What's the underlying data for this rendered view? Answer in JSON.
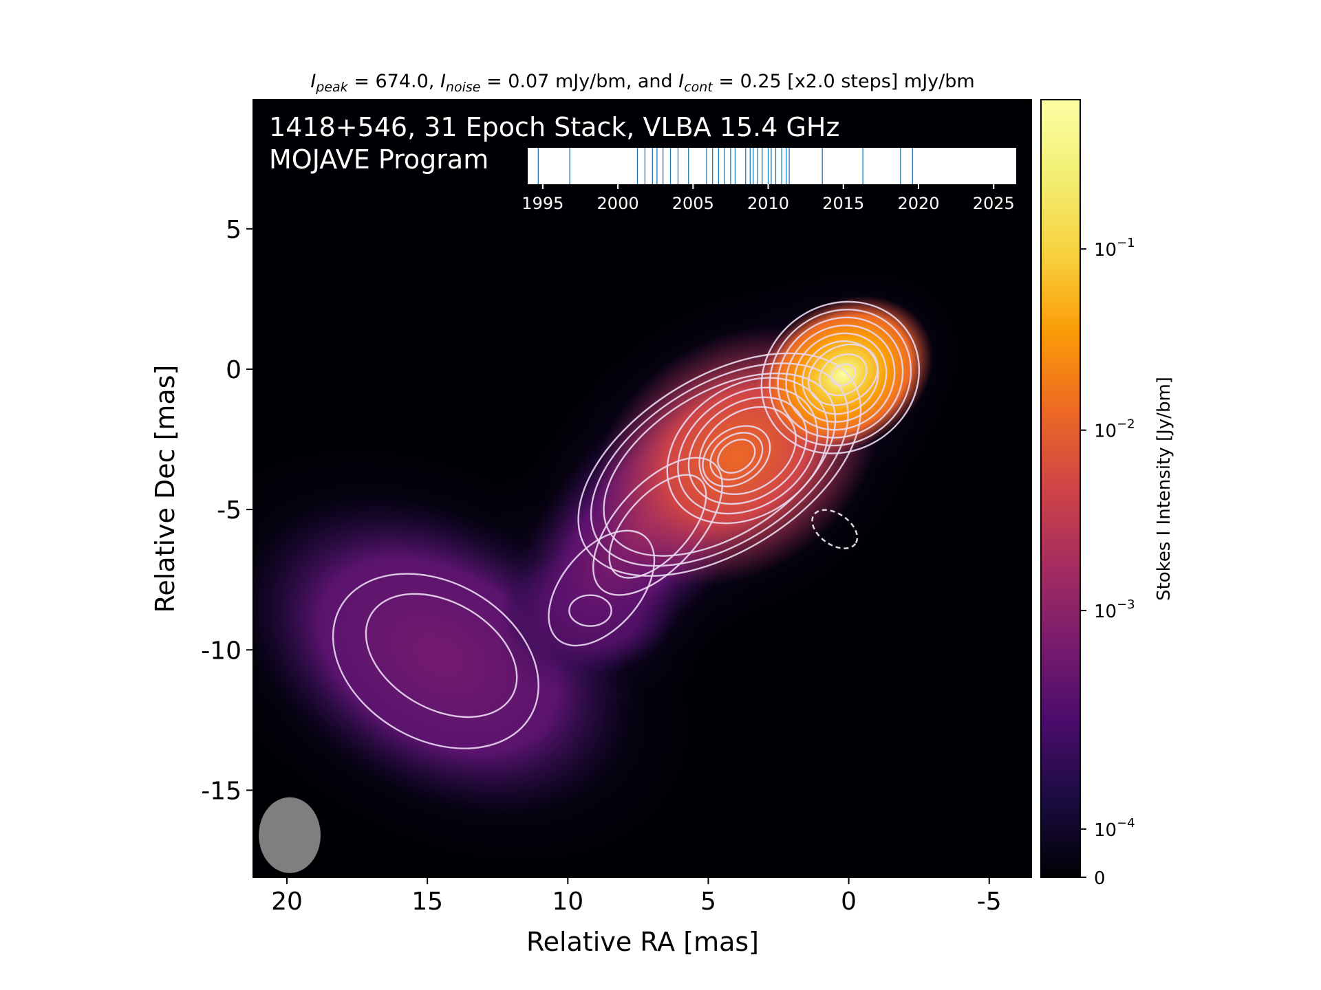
{
  "chart_data": {
    "type": "heatmap",
    "title": "1418+546, 31 Epoch Stack, VLBA 15.4 GHz",
    "program": "MOJAVE Program",
    "subtitle": {
      "peak_var": "I",
      "peak_sub": "peak",
      "peak_value": " = 674.0, ",
      "noise_var": "I",
      "noise_sub": "noise",
      "noise_value": " = 0.07 mJy/bm, and ",
      "cont_var": "I",
      "cont_sub": "cont",
      "cont_value": " = 0.25 [x2.0 steps] mJy/bm"
    },
    "xlabel": "Relative RA [mas]",
    "ylabel": "Relative Dec [mas]",
    "xlim": [
      21.2,
      -6.5
    ],
    "ylim": [
      -18.1,
      9.6
    ],
    "xticks": [
      {
        "v": 20,
        "label": "20"
      },
      {
        "v": 15,
        "label": "15"
      },
      {
        "v": 10,
        "label": "10"
      },
      {
        "v": 5,
        "label": "5"
      },
      {
        "v": 0,
        "label": "0"
      },
      {
        "v": -5,
        "label": "-5"
      }
    ],
    "yticks": [
      {
        "v": 5,
        "label": "5"
      },
      {
        "v": 0,
        "label": "0"
      },
      {
        "v": -5,
        "label": "-5"
      },
      {
        "v": -10,
        "label": "-10"
      },
      {
        "v": -15,
        "label": "-15"
      }
    ],
    "colorbar": {
      "label": "Stokes I Intensity [Jy/bm]",
      "scale": "log",
      "colormap": "inferno",
      "ticks": [
        {
          "frac": 0.0,
          "label": "0",
          "exp": ""
        },
        {
          "frac": 0.062,
          "label": "10",
          "exp": "−4"
        },
        {
          "frac": 0.343,
          "label": "10",
          "exp": "−3"
        },
        {
          "frac": 0.575,
          "label": "10",
          "exp": "−2"
        },
        {
          "frac": 0.808,
          "label": "10",
          "exp": "−1"
        }
      ]
    },
    "components": [
      {
        "ra": 0.2,
        "dec": -0.2,
        "intensity": 0.674,
        "major": 1.3,
        "minor": 1.0,
        "pa": -30
      },
      {
        "ra": 4.0,
        "dec": -3.1,
        "intensity": 0.021,
        "major": 2.1,
        "minor": 1.6,
        "pa": -35
      },
      {
        "ra": 7.3,
        "dec": -5.6,
        "intensity": 0.0015,
        "major": 3.2,
        "minor": 1.5,
        "pa": -50
      },
      {
        "ra": 9.2,
        "dec": -8.6,
        "intensity": 0.0008,
        "major": 1.2,
        "minor": 0.9,
        "pa": 0
      },
      {
        "ra": 14.6,
        "dec": -10.2,
        "intensity": 0.0007,
        "major": 3.6,
        "minor": 2.4,
        "pa": 30
      }
    ],
    "contour_levels_mJy": [
      0.25,
      0.5,
      1,
      2,
      4,
      8,
      16,
      32,
      64,
      128,
      256,
      512
    ],
    "restoring_beam": {
      "ra": 19.9,
      "dec": -16.6,
      "major": 1.35,
      "minor": 1.1,
      "color": "#7f7f7f"
    },
    "dashed_marker": {
      "ra": 0.5,
      "dec": -5.7,
      "major": 0.9,
      "minor": 0.55,
      "pa": -35
    },
    "epoch_timeline": {
      "range": [
        1994,
        2026.5
      ],
      "ticks": [
        1995,
        2000,
        2005,
        2010,
        2015,
        2020,
        2025
      ],
      "epochs": [
        1994.7,
        1996.8,
        2001.3,
        2001.8,
        2002.3,
        2002.6,
        2003.0,
        2003.5,
        2004.0,
        2004.7,
        2005.9,
        2006.3,
        2006.7,
        2007.1,
        2007.5,
        2007.8,
        2008.5,
        2008.8,
        2009.0,
        2009.3,
        2009.6,
        2010.0,
        2010.2,
        2010.5,
        2010.9,
        2011.2,
        2011.4,
        2013.6,
        2016.3,
        2018.8,
        2019.6
      ],
      "line_color": "#1f77b4"
    }
  }
}
